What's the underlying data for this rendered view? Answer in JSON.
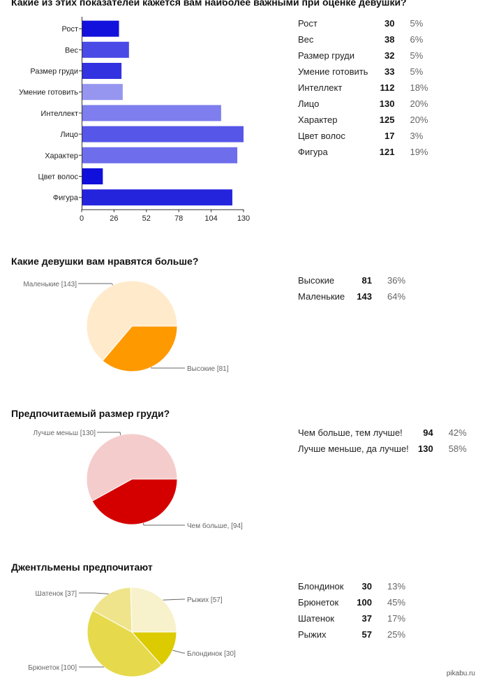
{
  "sections": [
    {
      "title": "Какие из этих показателей кажется вам наиболее важными при оценке девушки?",
      "stats": [
        {
          "label": "Рост",
          "count": "30",
          "pct": "5%"
        },
        {
          "label": "Вес",
          "count": "38",
          "pct": "6%"
        },
        {
          "label": "Размер груди",
          "count": "32",
          "pct": "5%"
        },
        {
          "label": "Умение готовить",
          "count": "33",
          "pct": "5%"
        },
        {
          "label": "Интеллект",
          "count": "112",
          "pct": "18%"
        },
        {
          "label": "Лицо",
          "count": "130",
          "pct": "20%"
        },
        {
          "label": "Характер",
          "count": "125",
          "pct": "20%"
        },
        {
          "label": "Цвет волос",
          "count": "17",
          "pct": "3%"
        },
        {
          "label": "Фигура",
          "count": "121",
          "pct": "19%"
        }
      ]
    },
    {
      "title": "Какие девушки вам нравятся больше?",
      "stats": [
        {
          "label": "Высокие",
          "count": "81",
          "pct": "36%"
        },
        {
          "label": "Маленькие",
          "count": "143",
          "pct": "64%"
        }
      ]
    },
    {
      "title": "Предпочитаемый размер груди?",
      "stats": [
        {
          "label": "Чем больше, тем лучше!",
          "count": "94",
          "pct": "42%"
        },
        {
          "label": "Лучше меньше, да лучше!",
          "count": "130",
          "pct": "58%"
        }
      ]
    },
    {
      "title": "Джентльмены предпочитают",
      "stats": [
        {
          "label": "Блондинок",
          "count": "30",
          "pct": "13%"
        },
        {
          "label": "Брюнеток",
          "count": "100",
          "pct": "45%"
        },
        {
          "label": "Шатенок",
          "count": "37",
          "pct": "17%"
        },
        {
          "label": "Рыжих",
          "count": "57",
          "pct": "25%"
        }
      ]
    }
  ],
  "chart_data": [
    {
      "type": "bar",
      "orientation": "horizontal",
      "title": "Какие из этих показателей кажется вам наиболее важными при оценке девушки?",
      "categories": [
        "Рост",
        "Вес",
        "Размер груди",
        "Умение готовить",
        "Интеллект",
        "Лицо",
        "Характер",
        "Цвет волос",
        "Фигура"
      ],
      "values": [
        30,
        38,
        32,
        33,
        112,
        130,
        125,
        17,
        121
      ],
      "colors": [
        "#1212dc",
        "#4a4ae6",
        "#3232e0",
        "#9696f0",
        "#7e7eee",
        "#5656e8",
        "#6e6eec",
        "#1010dc",
        "#2424dc"
      ],
      "xlim": [
        0,
        130
      ],
      "xticks": [
        "0",
        "26",
        "52",
        "78",
        "104",
        "130"
      ],
      "grid": false
    },
    {
      "type": "pie",
      "title": "Какие девушки вам нравятся больше?",
      "slices": [
        {
          "label": "Высокие [81]",
          "value": 81,
          "color": "#ff9900"
        },
        {
          "label": "Маленькие [143]",
          "value": 143,
          "color": "#ffebcc"
        }
      ]
    },
    {
      "type": "pie",
      "title": "Предпочитаемый размер груди?",
      "slices": [
        {
          "label": "Чем больше,  [94]",
          "value": 94,
          "color": "#d40000"
        },
        {
          "label": "Лучше меньш [130]",
          "value": 130,
          "color": "#f5cccc"
        }
      ]
    },
    {
      "type": "pie",
      "title": "Джентльмены предпочитают",
      "slices": [
        {
          "label": "Блондинок [30]",
          "value": 30,
          "color": "#dccb00"
        },
        {
          "label": "Брюнеток [100]",
          "value": 100,
          "color": "#e6da4c"
        },
        {
          "label": "Шатенок [37]",
          "value": 37,
          "color": "#efe48c"
        },
        {
          "label": "Рыжих [57]",
          "value": 57,
          "color": "#f7f2cc"
        }
      ]
    }
  ],
  "watermark": "pikabu.ru"
}
